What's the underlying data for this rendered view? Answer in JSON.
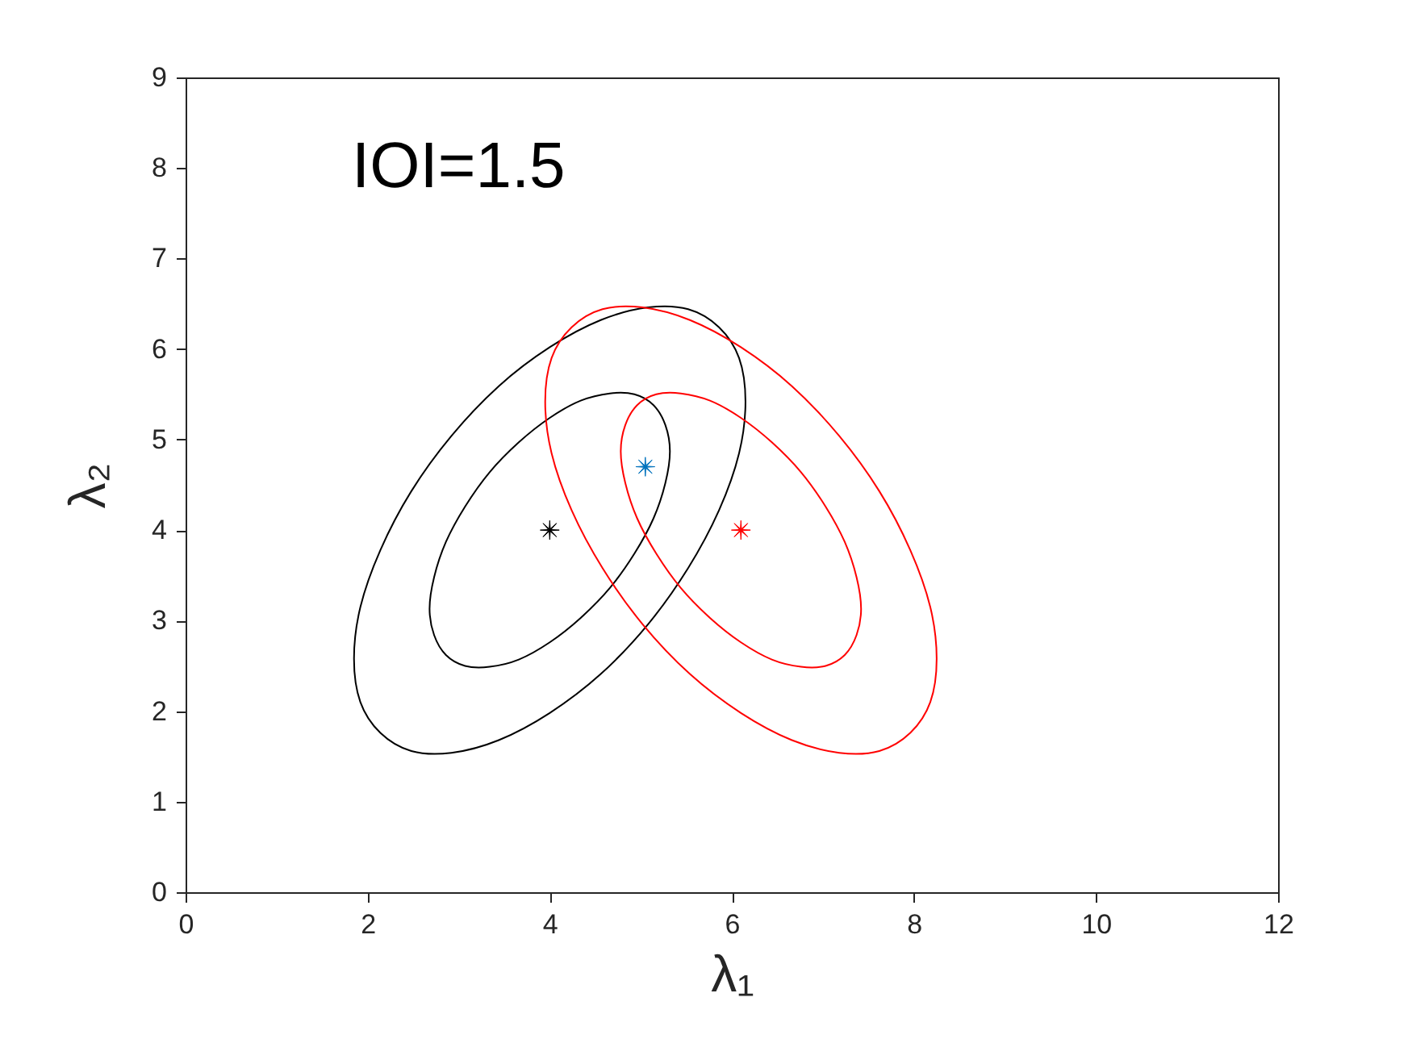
{
  "chart_data": {
    "type": "scatter",
    "xlabel": "λ₁",
    "ylabel": "λ₂",
    "annotations": [
      "IOI=1.5"
    ],
    "xlim": [
      0,
      12
    ],
    "xticks": [
      0,
      2,
      4,
      6,
      8,
      10,
      12
    ],
    "ylim": [
      0,
      9
    ],
    "yticks": [
      0,
      1,
      2,
      3,
      4,
      5,
      6,
      7,
      8,
      9
    ],
    "marker": "star",
    "series": [
      {
        "color": "#000000",
        "x": [
          4.0
        ],
        "values": [
          4.0
        ]
      },
      {
        "color": "#0072bd",
        "x": [
          5.05
        ],
        "values": [
          4.7
        ]
      },
      {
        "color": "#ff0000",
        "x": [
          6.1
        ],
        "values": [
          4.0
        ]
      }
    ]
  }
}
